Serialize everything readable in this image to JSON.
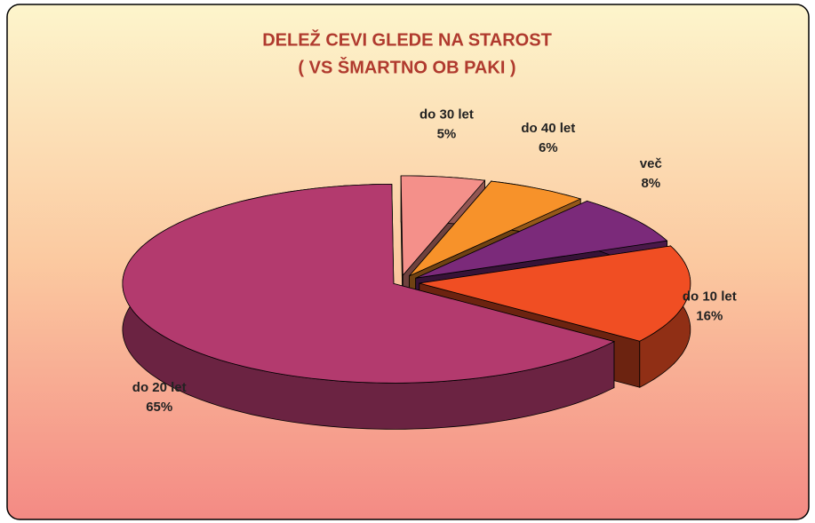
{
  "chart_data": {
    "type": "pie3d",
    "title": "DELEŽ CEVI GLEDE NA STAROST",
    "subtitle": "( VS ŠMARTNO OB PAKI )",
    "categories": [
      "do 10 let",
      "do 20 let",
      "do 30 let",
      "do 40 let",
      "več"
    ],
    "values": [
      16,
      65,
      5,
      6,
      8
    ],
    "value_labels": [
      "16%",
      "65%",
      "5%",
      "6%",
      "8%"
    ],
    "colors": [
      "#f04e23",
      "#b33a6e",
      "#f4908a",
      "#f7922a",
      "#7b2a7a"
    ]
  }
}
